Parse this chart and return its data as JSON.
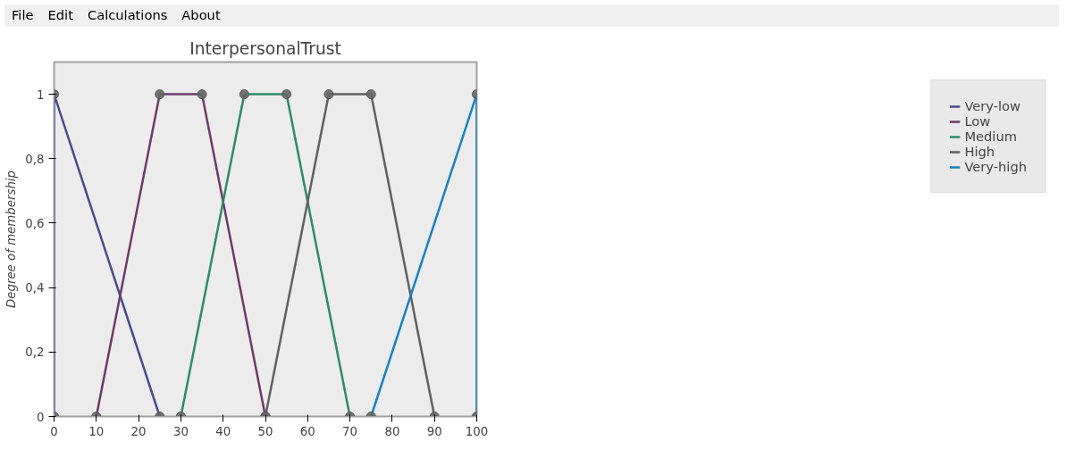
{
  "chart_data": {
    "type": "line",
    "title": "InterpersonalTrust",
    "ylabel": "Degree of membership",
    "annotations": [
      "File",
      "Edit",
      "Calculations",
      "About"
    ],
    "series": [
      {
        "name": "Very-low",
        "color": "#4b4a8c",
        "x": [
          0,
          0,
          25
        ],
        "values": [
          0,
          1,
          0
        ]
      },
      {
        "name": "Low",
        "color": "#6a3b6a",
        "x": [
          10,
          25,
          35,
          50
        ],
        "values": [
          0,
          1,
          1,
          0
        ]
      },
      {
        "name": "Medium",
        "color": "#2e8a68",
        "x": [
          30,
          45,
          55,
          70
        ],
        "values": [
          0,
          1,
          1,
          0
        ]
      },
      {
        "name": "High",
        "color": "#606060",
        "x": [
          50,
          65,
          75,
          90
        ],
        "values": [
          0,
          1,
          1,
          0
        ]
      },
      {
        "name": "Very-high",
        "color": "#1a82c0",
        "x": [
          75,
          100,
          100
        ],
        "values": [
          0,
          1,
          0
        ]
      }
    ],
    "xlim": [
      0,
      100
    ],
    "xticks": [
      0,
      10,
      20,
      30,
      40,
      50,
      60,
      70,
      80,
      90,
      100
    ],
    "ylim": [
      0,
      1.1
    ],
    "yticks": [
      0,
      {
        "value": 0.2,
        "label": "0,2"
      },
      {
        "value": 0.4,
        "label": "0,4"
      },
      {
        "value": 0.6,
        "label": "0,6"
      },
      {
        "value": 0.8,
        "label": "0,8"
      },
      1
    ],
    "grid": false,
    "legend": "right",
    "marker": "circle",
    "line_style": "solid"
  }
}
